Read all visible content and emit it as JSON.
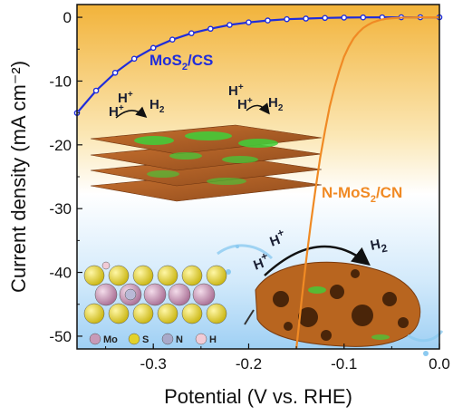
{
  "chart_data": {
    "type": "line",
    "xlabel": "Potential (V vs. RHE)",
    "ylabel": "Current density (mA cm⁻²)",
    "xlim": [
      -0.38,
      0.0
    ],
    "ylim": [
      -52,
      2
    ],
    "xticks": [
      "-0.3",
      "-0.2",
      "-0.1",
      "0.0"
    ],
    "yticks": [
      "0",
      "-10",
      "-20",
      "-30",
      "-40",
      "-50"
    ],
    "series": [
      {
        "name": "MoS2/CS",
        "color": "#1f2ddb",
        "marker": "circle",
        "x": [
          -0.38,
          -0.36,
          -0.34,
          -0.32,
          -0.3,
          -0.28,
          -0.26,
          -0.24,
          -0.22,
          -0.2,
          -0.18,
          -0.16,
          -0.14,
          -0.12,
          -0.1,
          -0.08,
          -0.06,
          -0.04,
          -0.02,
          0.0
        ],
        "y": [
          -15.0,
          -11.5,
          -8.7,
          -6.5,
          -4.8,
          -3.5,
          -2.5,
          -1.8,
          -1.2,
          -0.8,
          -0.5,
          -0.3,
          -0.2,
          -0.1,
          -0.05,
          -0.02,
          -0.01,
          0,
          0,
          0
        ]
      },
      {
        "name": "N-MoS2/CN",
        "color": "#f08a24",
        "marker": "none",
        "x": [
          -0.15,
          -0.145,
          -0.14,
          -0.135,
          -0.13,
          -0.125,
          -0.12,
          -0.115,
          -0.11,
          -0.105,
          -0.1,
          -0.095,
          -0.09,
          -0.085,
          -0.08,
          -0.075,
          -0.07,
          -0.065,
          -0.06,
          -0.055,
          -0.05,
          -0.04,
          -0.03,
          -0.02,
          -0.01,
          0.0
        ],
        "y": [
          -52.0,
          -45.0,
          -38.5,
          -32.5,
          -27.0,
          -22.0,
          -17.8,
          -14.0,
          -11.0,
          -8.4,
          -6.2,
          -4.6,
          -3.3,
          -2.4,
          -1.7,
          -1.2,
          -0.8,
          -0.55,
          -0.35,
          -0.22,
          -0.14,
          -0.06,
          -0.03,
          -0.01,
          0,
          0
        ]
      }
    ],
    "series_labels": {
      "a": {
        "base": "MoS",
        "sub": "2",
        "tail": "/CS"
      },
      "b": {
        "base": "N-MoS",
        "sub": "2",
        "tail": "/CN"
      }
    },
    "inset_labels": {
      "h_plus": "H",
      "plus": "+",
      "h2_base": "H",
      "h2_sub": "2"
    },
    "atom_legend": [
      {
        "label": "Mo",
        "color": "#c79ab8"
      },
      {
        "label": "S",
        "color": "#e3d22a"
      },
      {
        "label": "N",
        "color": "#a9a9c9"
      },
      {
        "label": "H",
        "color": "#f1cbd6"
      }
    ]
  }
}
